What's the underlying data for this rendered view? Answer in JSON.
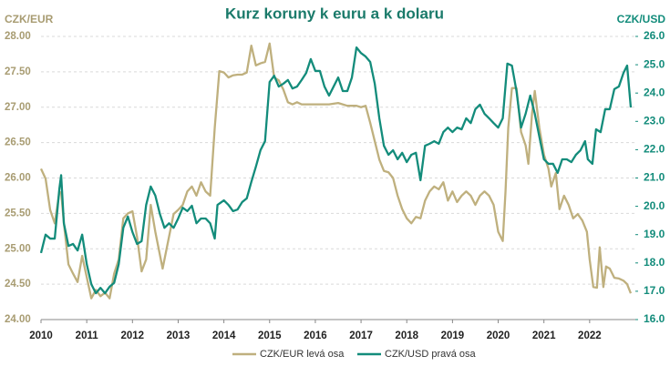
{
  "chart_data": {
    "type": "line",
    "title": "Kurz koruny k euru a k dolaru",
    "y_label": "CZK/EUR",
    "y2_label": "CZK/USD",
    "xlim": [
      2010,
      2023
    ],
    "xticks": [
      2010,
      2011,
      2012,
      2013,
      2014,
      2015,
      2016,
      2017,
      2018,
      2019,
      2020,
      2021,
      2022
    ],
    "ylim": [
      24,
      28
    ],
    "yticks": [
      {
        "value": 24,
        "label": "24.00"
      },
      {
        "value": 24.5,
        "label": "24.50"
      },
      {
        "value": 25,
        "label": "25.00"
      },
      {
        "value": 25.5,
        "label": "25.50"
      },
      {
        "value": 26,
        "label": "26.00"
      },
      {
        "value": 26.5,
        "label": "26.50"
      },
      {
        "value": 27,
        "label": "27.00"
      },
      {
        "value": 27.5,
        "label": "27.50"
      },
      {
        "value": 28,
        "label": "28.00"
      }
    ],
    "y2lim": [
      16,
      26
    ],
    "y2ticks": [
      {
        "value": 16,
        "label": "16.0"
      },
      {
        "value": 17,
        "label": "17.0"
      },
      {
        "value": 18,
        "label": "18.0"
      },
      {
        "value": 19,
        "label": "19.0"
      },
      {
        "value": 20,
        "label": "20.0"
      },
      {
        "value": 21,
        "label": "21.0"
      },
      {
        "value": 22,
        "label": "22.0"
      },
      {
        "value": 23,
        "label": "23.0"
      },
      {
        "value": 24,
        "label": "24.0"
      },
      {
        "value": 25,
        "label": "25.0"
      },
      {
        "value": 26,
        "label": "26.0"
      }
    ],
    "grid": true,
    "legend": "bottom",
    "series": [
      {
        "name": "CZK/EUR levá osa",
        "color": "#bfb07e",
        "axis": "y",
        "x": [
          2010.0,
          2010.1,
          2010.2,
          2010.3,
          2010.4,
          2010.44,
          2010.5,
          2010.6,
          2010.7,
          2010.8,
          2010.9,
          2011.0,
          2011.1,
          2011.2,
          2011.3,
          2011.4,
          2011.5,
          2011.6,
          2011.7,
          2011.8,
          2011.9,
          2012.0,
          2012.1,
          2012.2,
          2012.3,
          2012.4,
          2012.5,
          2012.66,
          2012.8,
          2012.9,
          2013.0,
          2013.1,
          2013.2,
          2013.3,
          2013.4,
          2013.5,
          2013.6,
          2013.7,
          2013.8,
          2013.9,
          2014.0,
          2014.1,
          2014.2,
          2014.3,
          2014.4,
          2014.5,
          2014.6,
          2014.7,
          2014.8,
          2014.9,
          2015.0,
          2015.1,
          2015.2,
          2015.3,
          2015.4,
          2015.5,
          2015.6,
          2015.7,
          2015.9,
          2016.1,
          2016.3,
          2016.5,
          2016.7,
          2016.9,
          2017.0,
          2017.1,
          2017.2,
          2017.3,
          2017.4,
          2017.5,
          2017.6,
          2017.7,
          2017.8,
          2017.9,
          2018.0,
          2018.1,
          2018.2,
          2018.3,
          2018.4,
          2018.5,
          2018.6,
          2018.7,
          2018.8,
          2018.9,
          2019.0,
          2019.1,
          2019.2,
          2019.3,
          2019.4,
          2019.5,
          2019.6,
          2019.7,
          2019.8,
          2019.9,
          2020.0,
          2020.1,
          2020.16,
          2020.22,
          2020.3,
          2020.4,
          2020.5,
          2020.6,
          2020.66,
          2020.74,
          2020.8,
          2020.9,
          2021.0,
          2021.1,
          2021.16,
          2021.26,
          2021.34,
          2021.44,
          2021.54,
          2021.64,
          2021.74,
          2021.84,
          2021.94,
          2022.0,
          2022.08,
          2022.16,
          2022.22,
          2022.3,
          2022.36,
          2022.44,
          2022.54,
          2022.64,
          2022.74,
          2022.82,
          2022.9
        ],
        "values": [
          26.13,
          25.99,
          25.55,
          25.36,
          25.79,
          25.8,
          25.36,
          24.78,
          24.65,
          24.53,
          24.9,
          24.6,
          24.3,
          24.42,
          24.33,
          24.38,
          24.3,
          24.65,
          24.85,
          25.43,
          25.5,
          25.53,
          25.17,
          24.68,
          24.85,
          25.62,
          25.24,
          24.72,
          25.17,
          25.49,
          25.55,
          25.62,
          25.81,
          25.88,
          25.75,
          25.94,
          25.81,
          25.75,
          26.71,
          27.51,
          27.49,
          27.42,
          27.45,
          27.46,
          27.46,
          27.49,
          27.87,
          27.59,
          27.62,
          27.64,
          27.9,
          27.42,
          27.38,
          27.25,
          27.07,
          27.04,
          27.07,
          27.04,
          27.04,
          27.04,
          27.04,
          27.06,
          27.02,
          27.02,
          27.0,
          27.02,
          26.78,
          26.52,
          26.26,
          26.1,
          26.08,
          26.0,
          25.75,
          25.56,
          25.43,
          25.36,
          25.45,
          25.43,
          25.68,
          25.81,
          25.88,
          25.84,
          25.94,
          25.68,
          25.81,
          25.66,
          25.75,
          25.81,
          25.75,
          25.62,
          25.75,
          25.81,
          25.75,
          25.62,
          25.24,
          25.11,
          25.81,
          26.71,
          27.27,
          27.27,
          26.65,
          26.46,
          26.2,
          26.91,
          27.23,
          26.71,
          26.33,
          26.13,
          25.88,
          26.07,
          25.56,
          25.75,
          25.62,
          25.43,
          25.49,
          25.4,
          25.24,
          24.85,
          24.46,
          24.45,
          25.02,
          24.46,
          24.75,
          24.72,
          24.59,
          24.58,
          24.55,
          24.5,
          24.37
        ]
      },
      {
        "name": "CZK/USD pravá osa",
        "color": "#138c7b",
        "axis": "y2",
        "x": [
          2010.0,
          2010.1,
          2010.2,
          2010.3,
          2010.4,
          2010.44,
          2010.5,
          2010.6,
          2010.7,
          2010.8,
          2010.9,
          2011.0,
          2011.1,
          2011.2,
          2011.3,
          2011.4,
          2011.5,
          2011.6,
          2011.7,
          2011.8,
          2011.9,
          2012.0,
          2012.1,
          2012.2,
          2012.3,
          2012.4,
          2012.5,
          2012.6,
          2012.7,
          2012.8,
          2012.9,
          2013.0,
          2013.1,
          2013.2,
          2013.3,
          2013.4,
          2013.5,
          2013.6,
          2013.7,
          2013.8,
          2013.86,
          2014.0,
          2014.1,
          2014.2,
          2014.3,
          2014.4,
          2014.5,
          2014.6,
          2014.7,
          2014.8,
          2014.9,
          2015.0,
          2015.1,
          2015.2,
          2015.3,
          2015.4,
          2015.5,
          2015.6,
          2015.7,
          2015.8,
          2015.9,
          2016.0,
          2016.1,
          2016.2,
          2016.3,
          2016.4,
          2016.5,
          2016.6,
          2016.7,
          2016.8,
          2016.9,
          2017.0,
          2017.1,
          2017.2,
          2017.3,
          2017.4,
          2017.5,
          2017.6,
          2017.7,
          2017.8,
          2017.9,
          2018.0,
          2018.1,
          2018.2,
          2018.3,
          2018.4,
          2018.5,
          2018.6,
          2018.7,
          2018.8,
          2018.9,
          2019.0,
          2019.1,
          2019.2,
          2019.3,
          2019.4,
          2019.5,
          2019.6,
          2019.7,
          2019.8,
          2019.9,
          2020.0,
          2020.1,
          2020.2,
          2020.3,
          2020.4,
          2020.5,
          2020.6,
          2020.7,
          2020.8,
          2020.9,
          2021.0,
          2021.1,
          2021.2,
          2021.3,
          2021.4,
          2021.5,
          2021.6,
          2021.7,
          2021.8,
          2021.9,
          2021.96,
          2022.06,
          2022.14,
          2022.24,
          2022.34,
          2022.44,
          2022.54,
          2022.64,
          2022.74,
          2022.82,
          2022.9
        ],
        "values": [
          18.35,
          19.0,
          18.86,
          18.86,
          20.6,
          21.1,
          19.4,
          18.6,
          18.67,
          18.44,
          19.0,
          17.96,
          17.25,
          16.93,
          17.12,
          16.93,
          17.16,
          17.3,
          17.96,
          19.24,
          19.64,
          19.09,
          18.67,
          18.77,
          20.05,
          20.7,
          20.38,
          19.73,
          19.24,
          19.4,
          19.24,
          19.57,
          19.95,
          19.83,
          20.02,
          19.4,
          19.57,
          19.57,
          19.4,
          18.86,
          20.05,
          20.21,
          20.05,
          19.83,
          19.89,
          20.15,
          20.28,
          20.86,
          21.4,
          21.98,
          22.3,
          24.39,
          24.61,
          24.23,
          24.33,
          24.46,
          24.16,
          24.23,
          24.46,
          24.71,
          25.2,
          24.78,
          24.78,
          24.23,
          23.91,
          24.23,
          24.55,
          24.07,
          24.07,
          24.55,
          25.61,
          25.41,
          25.29,
          25.1,
          24.33,
          23.11,
          22.14,
          21.82,
          21.98,
          21.66,
          21.89,
          21.56,
          21.82,
          21.89,
          20.92,
          22.14,
          22.21,
          22.3,
          22.21,
          22.62,
          22.78,
          22.62,
          22.78,
          22.72,
          23.11,
          22.94,
          23.43,
          23.59,
          23.27,
          23.11,
          22.94,
          22.78,
          23.11,
          25.04,
          24.97,
          24.07,
          22.78,
          23.27,
          23.91,
          23.27,
          22.46,
          21.66,
          21.5,
          21.5,
          21.18,
          21.66,
          21.66,
          21.56,
          21.82,
          21.98,
          22.3,
          21.66,
          21.5,
          22.72,
          22.62,
          23.43,
          23.43,
          24.14,
          24.23,
          24.71,
          24.97,
          23.49
        ]
      }
    ]
  }
}
